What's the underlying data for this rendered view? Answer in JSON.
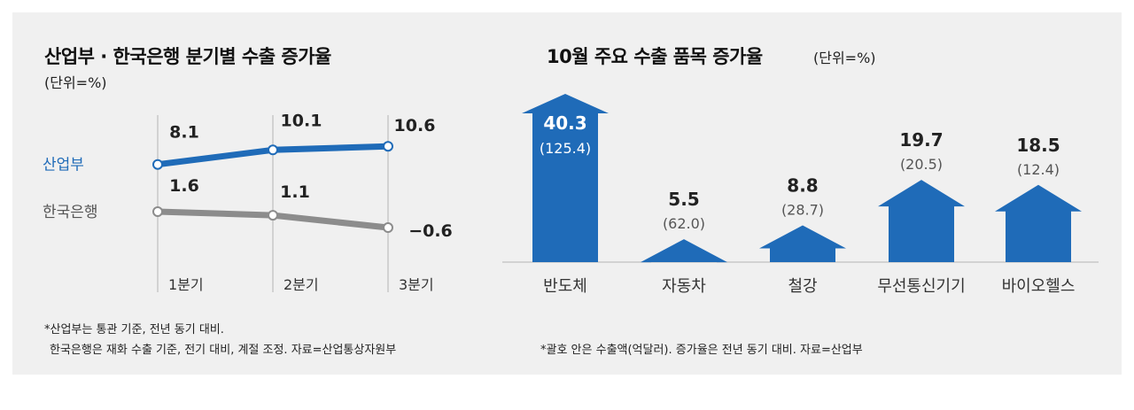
{
  "notes": {
    "left_line1": "*산업부는 통관 기준, 전년 동기 대비.",
    "left_line2": "한국은행은 재화 수출 기준, 전기 대비, 계절 조정. 자료=산업통상자원부",
    "right": "*괄호 안은 수출액(억달러). 증가율은 전년 동기 대비. 자료=산업부"
  },
  "colors": {
    "accent": "#1f6bb8",
    "secondary": "#8c8c8c",
    "background": "#f0f0f0"
  },
  "chart_data": [
    {
      "type": "line",
      "title": "산업부 · 한국은행 분기별 수출 증가율",
      "unit_label": "(단위=%)",
      "categories": [
        "1분기",
        "2분기",
        "3분기"
      ],
      "series": [
        {
          "name": "산업부",
          "values": [
            8.1,
            10.1,
            10.6
          ],
          "labels": [
            "8.1",
            "10.1",
            "10.6"
          ],
          "color": "#1f6bb8"
        },
        {
          "name": "한국은행",
          "values": [
            1.6,
            1.1,
            -0.6
          ],
          "labels": [
            "1.6",
            "1.1",
            "−0.6"
          ],
          "color": "#8c8c8c"
        }
      ]
    },
    {
      "type": "bar",
      "title": "10월 주요 수출 품목 증가율",
      "unit_label": "(단위=%)",
      "categories": [
        "반도체",
        "자동차",
        "철강",
        "무선통신기기",
        "바이오헬스"
      ],
      "values": [
        40.3,
        5.5,
        8.8,
        19.7,
        18.5
      ],
      "value_labels": [
        "40.3",
        "5.5",
        "8.8",
        "19.7",
        "18.5"
      ],
      "secondary_labels": [
        "(125.4)",
        "(62.0)",
        "(28.7)",
        "(20.5)",
        "(12.4)"
      ],
      "color": "#1f6bb8"
    }
  ]
}
